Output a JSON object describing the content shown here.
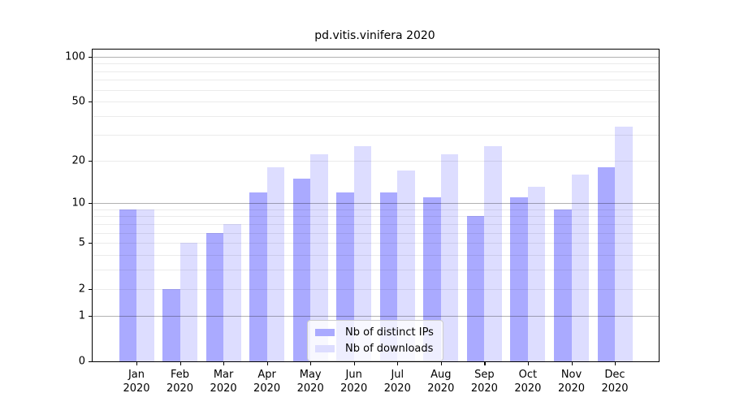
{
  "chart_data": {
    "type": "bar",
    "title": "pd.vitis.vinifera 2020",
    "categories": [
      "Jan 2020",
      "Feb 2020",
      "Mar 2020",
      "Apr 2020",
      "May 2020",
      "Jun 2020",
      "Jul 2020",
      "Aug 2020",
      "Sep 2020",
      "Oct 2020",
      "Nov 2020",
      "Dec 2020"
    ],
    "x_tick_line1": [
      "Jan",
      "Feb",
      "Mar",
      "Apr",
      "May",
      "Jun",
      "Jul",
      "Aug",
      "Sep",
      "Oct",
      "Nov",
      "Dec"
    ],
    "x_tick_line2": "2020",
    "series": [
      {
        "name": "Nb of distinct IPs",
        "color": "#aaaaff",
        "values": [
          9,
          2,
          6,
          12,
          15,
          12,
          12,
          11,
          8,
          11,
          9,
          18
        ]
      },
      {
        "name": "Nb of downloads",
        "color": "#ddddff",
        "values": [
          9,
          5,
          7,
          18,
          22,
          25,
          17,
          22,
          25,
          13,
          16,
          34
        ]
      }
    ],
    "y_axis": {
      "scale": "log1p",
      "tick_values": [
        0,
        1,
        2,
        5,
        10,
        20,
        50,
        100
      ],
      "tick_labels": [
        "0",
        "1",
        "2",
        "5",
        "10",
        "20",
        "50",
        "100"
      ],
      "decade_gridlines": [
        1,
        10,
        100
      ],
      "minor_gridlines": [
        2,
        3,
        4,
        5,
        6,
        7,
        8,
        9,
        20,
        30,
        40,
        50,
        60,
        70,
        80,
        90
      ],
      "ylim_top": 112
    },
    "legend": {
      "entries": [
        "Nb of distinct IPs",
        "Nb of downloads"
      ],
      "location": "lower center inside"
    },
    "grid": true
  }
}
